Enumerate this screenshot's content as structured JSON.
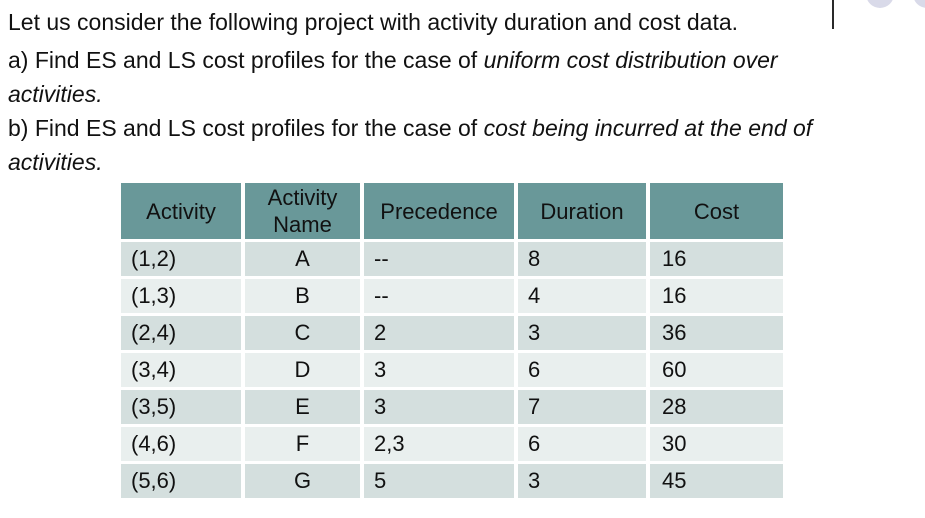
{
  "intro": {
    "line1": "Let us consider the following project with activity duration and cost data.",
    "line2": {
      "normal": "a) Find ES and LS cost profiles for the case of ",
      "italic": "uniform cost distribution over"
    },
    "line3": {
      "italic": "activities."
    },
    "line4": {
      "normal": "b) Find ES and LS cost profiles for the case of ",
      "italic": "cost being incurred at the end of"
    },
    "line5": {
      "italic": "activities."
    }
  },
  "table": {
    "headers": [
      "Activity",
      "Activity Name",
      "Precedence",
      "Duration",
      "Cost"
    ],
    "rows": [
      [
        "(1,2)",
        "A",
        "--",
        "8",
        "16"
      ],
      [
        "(1,3)",
        "B",
        "--",
        "4",
        "16"
      ],
      [
        "(2,4)",
        "C",
        "2",
        "3",
        "36"
      ],
      [
        "(3,4)",
        "D",
        "3",
        "6",
        "60"
      ],
      [
        "(3,5)",
        "E",
        "3",
        "7",
        "28"
      ],
      [
        "(4,6)",
        "F",
        "2,3",
        "6",
        "30"
      ],
      [
        "(5,6)",
        "G",
        "5",
        "3",
        "45"
      ]
    ]
  },
  "colors": {
    "header_bg": "#699899",
    "row_dark_bg": "#d4dfde",
    "row_light_bg": "#e9efee",
    "separator": "#ffffff",
    "text": "#111111",
    "decor_dot": "#d9dae9",
    "cursor_line": "#2a2a2a"
  }
}
